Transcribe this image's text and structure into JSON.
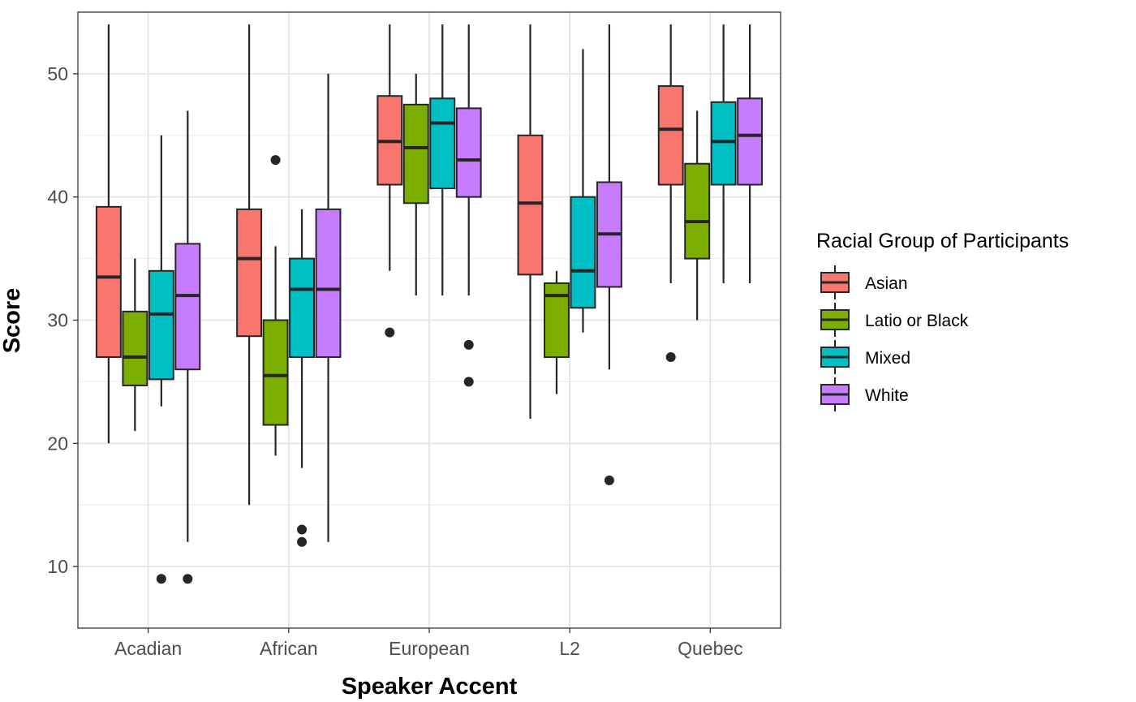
{
  "chart_data": {
    "type": "boxplot",
    "xlabel": "Speaker Accent",
    "ylabel": "Score",
    "categories": [
      "Acadian",
      "African",
      "European",
      "L2",
      "Quebec"
    ],
    "ylim": [
      5,
      55
    ],
    "yticks": [
      10,
      20,
      30,
      40,
      50
    ],
    "grid": true,
    "legend": {
      "title": "Racial Group of Participants",
      "placement": "right"
    },
    "series": [
      {
        "name": "Asian",
        "color": "#F8766D",
        "boxes": [
          {
            "category": "Acadian",
            "lower": 20,
            "q1": 27,
            "median": 33.5,
            "q3": 39.2,
            "upper": 54,
            "outliers": []
          },
          {
            "category": "African",
            "lower": 15,
            "q1": 28.7,
            "median": 35,
            "q3": 39,
            "upper": 54,
            "outliers": []
          },
          {
            "category": "European",
            "lower": 34,
            "q1": 41,
            "median": 44.5,
            "q3": 48.2,
            "upper": 54,
            "outliers": [
              29
            ]
          },
          {
            "category": "L2",
            "lower": 22,
            "q1": 33.7,
            "median": 39.5,
            "q3": 45,
            "upper": 54,
            "outliers": []
          },
          {
            "category": "Quebec",
            "lower": 33,
            "q1": 41,
            "median": 45.5,
            "q3": 49,
            "upper": 54,
            "outliers": [
              27
            ]
          }
        ]
      },
      {
        "name": "Latio or Black",
        "color": "#7CAE00",
        "boxes": [
          {
            "category": "Acadian",
            "lower": 21,
            "q1": 24.7,
            "median": 27,
            "q3": 30.7,
            "upper": 35,
            "outliers": []
          },
          {
            "category": "African",
            "lower": 19,
            "q1": 21.5,
            "median": 25.5,
            "q3": 30,
            "upper": 36,
            "outliers": [
              43
            ]
          },
          {
            "category": "European",
            "lower": 32,
            "q1": 39.5,
            "median": 44,
            "q3": 47.5,
            "upper": 50,
            "outliers": []
          },
          {
            "category": "L2",
            "lower": 24,
            "q1": 27,
            "median": 32,
            "q3": 33,
            "upper": 34,
            "outliers": []
          },
          {
            "category": "Quebec",
            "lower": 30,
            "q1": 35,
            "median": 38,
            "q3": 42.7,
            "upper": 47,
            "outliers": []
          }
        ]
      },
      {
        "name": "Mixed",
        "color": "#00BFC4",
        "boxes": [
          {
            "category": "Acadian",
            "lower": 23,
            "q1": 25.2,
            "median": 30.5,
            "q3": 34,
            "upper": 45,
            "outliers": [
              9
            ]
          },
          {
            "category": "African",
            "lower": 18,
            "q1": 27,
            "median": 32.5,
            "q3": 35,
            "upper": 39,
            "outliers": [
              13,
              12
            ]
          },
          {
            "category": "European",
            "lower": 32,
            "q1": 40.7,
            "median": 46,
            "q3": 48,
            "upper": 54,
            "outliers": []
          },
          {
            "category": "L2",
            "lower": 29,
            "q1": 31,
            "median": 34,
            "q3": 40,
            "upper": 52,
            "outliers": []
          },
          {
            "category": "Quebec",
            "lower": 33,
            "q1": 41,
            "median": 44.5,
            "q3": 47.7,
            "upper": 54,
            "outliers": []
          }
        ]
      },
      {
        "name": "White",
        "color": "#C77CFF",
        "boxes": [
          {
            "category": "Acadian",
            "lower": 12,
            "q1": 26,
            "median": 32,
            "q3": 36.2,
            "upper": 47,
            "outliers": [
              9
            ]
          },
          {
            "category": "African",
            "lower": 12,
            "q1": 27,
            "median": 32.5,
            "q3": 39,
            "upper": 50,
            "outliers": []
          },
          {
            "category": "European",
            "lower": 32,
            "q1": 40,
            "median": 43,
            "q3": 47.2,
            "upper": 54,
            "outliers": [
              28,
              25
            ]
          },
          {
            "category": "L2",
            "lower": 26,
            "q1": 32.7,
            "median": 37,
            "q3": 41.2,
            "upper": 54,
            "outliers": [
              17
            ]
          },
          {
            "category": "Quebec",
            "lower": 33,
            "q1": 41,
            "median": 45,
            "q3": 48,
            "upper": 54,
            "outliers": []
          }
        ]
      }
    ]
  }
}
